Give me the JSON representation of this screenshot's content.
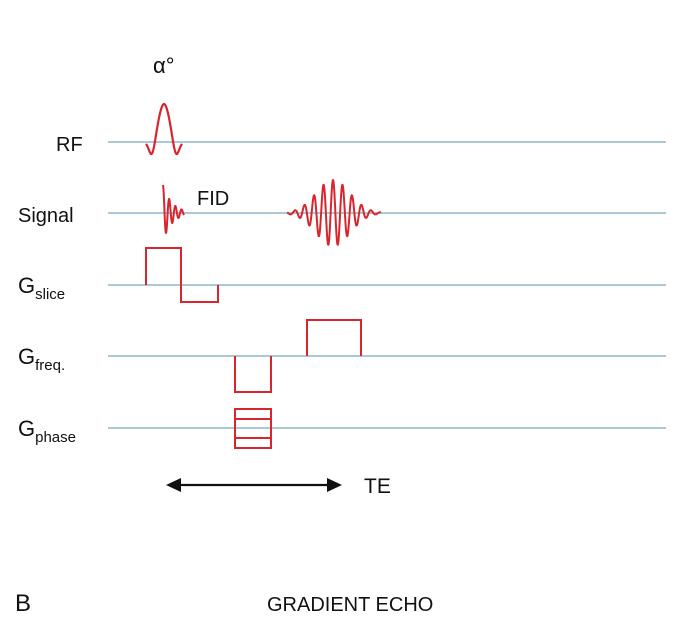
{
  "labels": {
    "flip_angle": "α°",
    "rf": "RF",
    "signal": "Signal",
    "fid": "FID",
    "g_main": "G",
    "slice_sub": "slice",
    "freq_sub": "freq.",
    "phase_sub": "phase",
    "te": "TE",
    "panel_letter": "B",
    "caption": "GRADIENT ECHO"
  },
  "colors": {
    "baseline": "#8fb6cc",
    "waveform": "#d7262e",
    "arrow": "#111111",
    "text": "#111111"
  }
}
